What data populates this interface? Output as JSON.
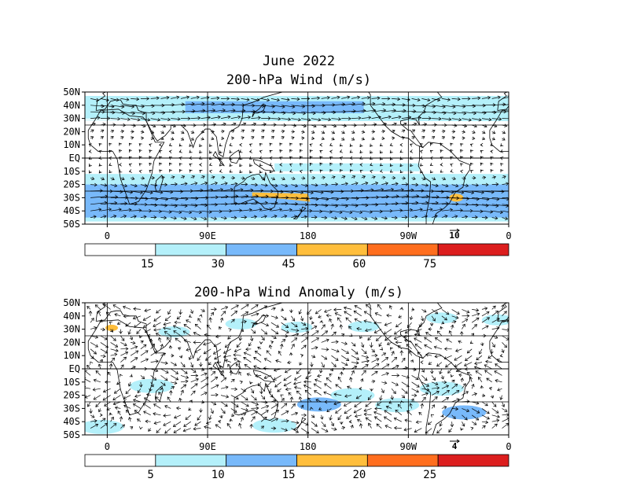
{
  "titles": {
    "month": "June 2022",
    "wind": "200-hPa Wind (m/s)",
    "anomaly": "200-hPa Wind Anomaly (m/s)"
  },
  "lat_labels": [
    "50N",
    "40N",
    "30N",
    "20N",
    "10N",
    "EQ",
    "10S",
    "20S",
    "30S",
    "40S",
    "50S"
  ],
  "lon_labels": [
    "0",
    "90E",
    "180",
    "90W",
    "0"
  ],
  "wind_map": {
    "ref_vector": "10",
    "colorbar": {
      "labels": [
        "15",
        "30",
        "45",
        "60",
        "75"
      ],
      "colors": [
        "#ffffff",
        "#b4f0fa",
        "#78b9fa",
        "#ffbe3c",
        "#ff6e1e",
        "#dc1e1e"
      ]
    }
  },
  "anomaly_map": {
    "ref_vector": "4",
    "colorbar": {
      "labels": [
        "5",
        "10",
        "15",
        "20",
        "25"
      ],
      "colors": [
        "#ffffff",
        "#b4f0fa",
        "#78b9fa",
        "#ffbe3c",
        "#ff6e1e",
        "#dc1e1e"
      ]
    }
  }
}
